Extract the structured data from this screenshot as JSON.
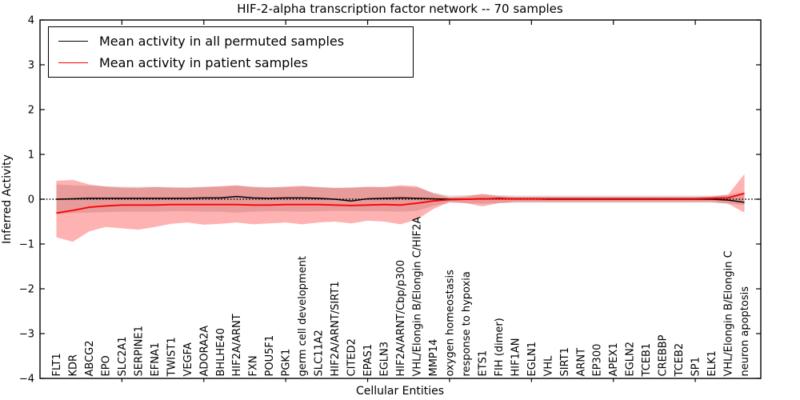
{
  "chart_data": {
    "type": "line",
    "title": "HIF-2-alpha transcription factor network -- 70 samples",
    "xlabel": "Cellular Entities",
    "ylabel": "Inferred Activity",
    "ylim": [
      -4,
      4
    ],
    "yticks": [
      4,
      3,
      2,
      1,
      0,
      -1,
      -2,
      -3,
      -4
    ],
    "ytick_labels": [
      "4",
      "3",
      "2",
      "1",
      "0",
      "−1",
      "−2",
      "−3",
      "−4"
    ],
    "xtick_label_rotation": 90,
    "grid": false,
    "legend_position": "upper-left",
    "categories": [
      "FLT1",
      "KDR",
      "ABCG2",
      "EPO",
      "SLC2A1",
      "SERPINE1",
      "EFNA1",
      "TWIST1",
      "VEGFA",
      "ADORA2A",
      "BHLHE40",
      "HIF2A/ARNT",
      "FXN",
      "POU5F1",
      "PGK1",
      "germ cell development",
      "SLC11A2",
      "HIF2A/ARNT/SIRT1",
      "CITED2",
      "EPAS1",
      "EGLN3",
      "HIF2A/ARNT/Cbp/p300",
      "VHL/Elongin B/Elongin C/HIF2A",
      "MMP14",
      "oxygen homeostasis",
      "response to hypoxia",
      "ETS1",
      "FIH (dimer)",
      "HIF1AN",
      "EGLN1",
      "VHL",
      "SIRT1",
      "ARNT",
      "EP300",
      "APEX1",
      "EGLN2",
      "TCEB1",
      "CREBBP",
      "TCEB2",
      "SP1",
      "ELK1",
      "VHL/Elongin B/Elongin C",
      "neuron apoptosis"
    ],
    "series": [
      {
        "name": "Mean activity in all permuted samples",
        "color": "#000000",
        "values": [
          0.0,
          0.01,
          0.02,
          0.02,
          0.02,
          0.02,
          0.02,
          0.02,
          0.02,
          0.03,
          0.03,
          0.06,
          0.03,
          0.02,
          0.03,
          0.03,
          0.02,
          0.0,
          -0.04,
          0.01,
          0.02,
          0.03,
          0.02,
          0.01,
          0.0,
          0.0,
          0.01,
          0.02,
          0.01,
          0.01,
          0.0,
          0.0,
          0.0,
          0.0,
          0.0,
          0.0,
          0.0,
          0.0,
          0.0,
          0.0,
          0.0,
          -0.02,
          -0.07
        ]
      },
      {
        "name": "Mean activity in patient samples",
        "color": "#ff0000",
        "values": [
          -0.31,
          -0.25,
          -0.18,
          -0.15,
          -0.13,
          -0.13,
          -0.13,
          -0.12,
          -0.12,
          -0.12,
          -0.12,
          -0.12,
          -0.13,
          -0.13,
          -0.12,
          -0.12,
          -0.12,
          -0.13,
          -0.14,
          -0.13,
          -0.12,
          -0.13,
          -0.09,
          -0.04,
          -0.01,
          0.0,
          0.01,
          0.01,
          0.01,
          0.01,
          0.01,
          0.01,
          0.01,
          0.01,
          0.01,
          0.01,
          0.01,
          0.01,
          0.01,
          0.01,
          0.02,
          0.03,
          0.13
        ]
      }
    ],
    "bands": [
      {
        "name": "permuted-samples-std-band",
        "color": "rgba(0,0,0,0.13)",
        "upper": [
          0.33,
          0.31,
          0.3,
          0.29,
          0.28,
          0.28,
          0.28,
          0.27,
          0.27,
          0.28,
          0.28,
          0.3,
          0.28,
          0.27,
          0.27,
          0.28,
          0.27,
          0.26,
          0.26,
          0.27,
          0.27,
          0.28,
          0.26,
          0.15,
          0.08,
          0.09,
          0.1,
          0.09,
          0.08,
          0.08,
          0.08,
          0.08,
          0.08,
          0.08,
          0.08,
          0.08,
          0.08,
          0.08,
          0.08,
          0.08,
          0.08,
          0.1,
          0.13
        ],
        "lower": [
          -0.33,
          -0.31,
          -0.3,
          -0.29,
          -0.28,
          -0.28,
          -0.28,
          -0.27,
          -0.27,
          -0.28,
          -0.28,
          -0.3,
          -0.28,
          -0.27,
          -0.27,
          -0.28,
          -0.27,
          -0.26,
          -0.26,
          -0.27,
          -0.27,
          -0.28,
          -0.26,
          -0.15,
          -0.08,
          -0.09,
          -0.1,
          -0.09,
          -0.08,
          -0.08,
          -0.08,
          -0.08,
          -0.08,
          -0.08,
          -0.08,
          -0.08,
          -0.08,
          -0.08,
          -0.08,
          -0.08,
          -0.08,
          -0.1,
          -0.13
        ]
      },
      {
        "name": "patient-samples-std-band",
        "color": "rgba(255,0,0,0.30)",
        "upper": [
          0.41,
          0.43,
          0.33,
          0.28,
          0.26,
          0.25,
          0.27,
          0.26,
          0.25,
          0.27,
          0.29,
          0.31,
          0.27,
          0.26,
          0.28,
          0.3,
          0.27,
          0.25,
          0.26,
          0.28,
          0.27,
          0.31,
          0.29,
          0.13,
          0.04,
          0.06,
          0.12,
          0.07,
          0.05,
          0.05,
          0.05,
          0.05,
          0.05,
          0.05,
          0.05,
          0.05,
          0.05,
          0.05,
          0.05,
          0.05,
          0.06,
          0.1,
          0.56
        ],
        "lower": [
          -0.85,
          -0.95,
          -0.72,
          -0.62,
          -0.65,
          -0.68,
          -0.62,
          -0.55,
          -0.52,
          -0.57,
          -0.55,
          -0.52,
          -0.56,
          -0.54,
          -0.52,
          -0.56,
          -0.52,
          -0.5,
          -0.54,
          -0.48,
          -0.5,
          -0.56,
          -0.46,
          -0.22,
          -0.06,
          -0.09,
          -0.16,
          -0.09,
          -0.06,
          -0.06,
          -0.06,
          -0.06,
          -0.06,
          -0.06,
          -0.06,
          -0.06,
          -0.06,
          -0.06,
          -0.06,
          -0.06,
          -0.06,
          -0.1,
          -0.3
        ]
      }
    ],
    "zero_line": {
      "y": 0,
      "style": "dotted",
      "color": "#000000"
    },
    "colors": {
      "permuted": "#000000",
      "patient": "#ff0000",
      "spine": "#000000"
    }
  }
}
